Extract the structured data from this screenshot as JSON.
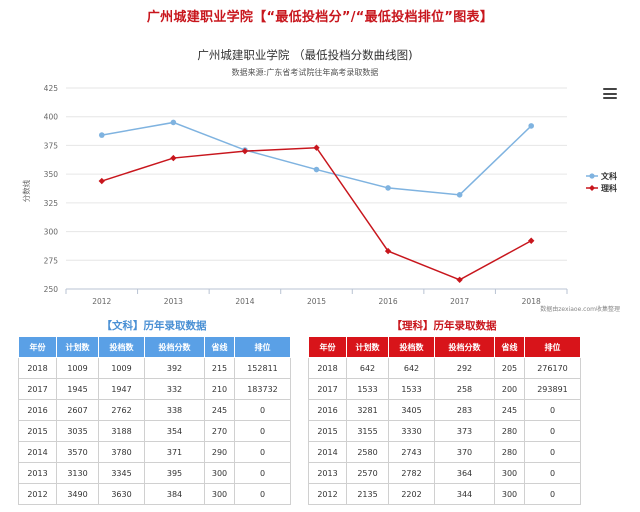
{
  "page_title": "广州城建职业学院【“最低投档分”/“最低投档排位”图表】",
  "colors": {
    "wenke": "#7fb3e0",
    "like": "#c8161d",
    "header_wenke": "#5aa0e6",
    "header_like": "#d8141a"
  },
  "chart": {
    "menu_icon": "hamburger-menu-icon",
    "credit": "数据由zexiaoe.com收集整理"
  },
  "chart_data": {
    "type": "line",
    "title": "广州城建职业学院 （最低投档分数曲线图)",
    "subtitle": "数据来源:广东省考试院往年高考录取数据",
    "ylabel": "分数线",
    "xlabel": "",
    "categories": [
      "2012",
      "2013",
      "2014",
      "2015",
      "2016",
      "2017",
      "2018"
    ],
    "ylim": [
      250,
      425
    ],
    "yticks": [
      250,
      275,
      300,
      325,
      350,
      375,
      400,
      425
    ],
    "grid": true,
    "legend": "right",
    "series": [
      {
        "name": "文科",
        "color": "#7fb3e0",
        "marker": "circle",
        "values": [
          384,
          395,
          371,
          354,
          338,
          332,
          392
        ]
      },
      {
        "name": "理科",
        "color": "#c8161d",
        "marker": "diamond",
        "values": [
          344,
          364,
          370,
          373,
          283,
          258,
          292
        ]
      }
    ]
  },
  "wenke_table": {
    "title": "【文科】历年录取数据",
    "headers": [
      "年份",
      "计划数",
      "投档数",
      "投档分数",
      "省线",
      "排位"
    ],
    "rows": [
      [
        "2018",
        "1009",
        "1009",
        "392",
        "215",
        "152811"
      ],
      [
        "2017",
        "1945",
        "1947",
        "332",
        "210",
        "183732"
      ],
      [
        "2016",
        "2607",
        "2762",
        "338",
        "245",
        "0"
      ],
      [
        "2015",
        "3035",
        "3188",
        "354",
        "270",
        "0"
      ],
      [
        "2014",
        "3570",
        "3780",
        "371",
        "290",
        "0"
      ],
      [
        "2013",
        "3130",
        "3345",
        "395",
        "300",
        "0"
      ],
      [
        "2012",
        "3490",
        "3630",
        "384",
        "300",
        "0"
      ]
    ]
  },
  "like_table": {
    "title": "【理科】历年录取数据",
    "headers": [
      "年份",
      "计划数",
      "投档数",
      "投档分数",
      "省线",
      "排位"
    ],
    "rows": [
      [
        "2018",
        "642",
        "642",
        "292",
        "205",
        "276170"
      ],
      [
        "2017",
        "1533",
        "1533",
        "258",
        "200",
        "293891"
      ],
      [
        "2016",
        "3281",
        "3405",
        "283",
        "245",
        "0"
      ],
      [
        "2015",
        "3155",
        "3330",
        "373",
        "280",
        "0"
      ],
      [
        "2014",
        "2580",
        "2743",
        "370",
        "280",
        "0"
      ],
      [
        "2013",
        "2570",
        "2782",
        "364",
        "300",
        "0"
      ],
      [
        "2012",
        "2135",
        "2202",
        "344",
        "300",
        "0"
      ]
    ]
  }
}
